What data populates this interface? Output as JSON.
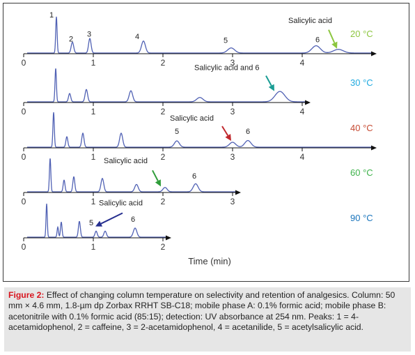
{
  "chart_data": {
    "type": "line",
    "xlabel": "Time (min)",
    "x_ticks": [
      0,
      1,
      2,
      3,
      4
    ],
    "xlim": [
      0,
      5
    ],
    "grid": false,
    "legend": "none",
    "colors": {
      "line": "#5061b4",
      "axis": "#111111"
    },
    "panels": [
      {
        "label": "20 °C",
        "label_color": "#8cc63f",
        "x_end": 5.0,
        "peaks": [
          {
            "t": 0.47,
            "h": 1.0,
            "w": 0.01
          },
          {
            "t": 0.7,
            "h": 0.3,
            "w": 0.018
          },
          {
            "t": 0.95,
            "h": 0.4,
            "w": 0.018
          },
          {
            "t": 1.72,
            "h": 0.33,
            "w": 0.028
          },
          {
            "t": 2.98,
            "h": 0.14,
            "w": 0.05
          },
          {
            "t": 4.2,
            "h": 0.2,
            "w": 0.06
          },
          {
            "t": 4.52,
            "h": 0.1,
            "w": 0.07
          }
        ],
        "annotations": [
          {
            "text": "1",
            "t": 0.4,
            "h": 1.0
          },
          {
            "text": "2",
            "t": 0.68,
            "h": 0.34
          },
          {
            "text": "3",
            "t": 0.94,
            "h": 0.47
          },
          {
            "text": "4",
            "t": 1.63,
            "h": 0.4
          },
          {
            "text": "5",
            "t": 2.9,
            "h": 0.3
          },
          {
            "text": "6",
            "t": 4.22,
            "h": 0.32
          }
        ],
        "callouts": [
          {
            "text": "Salicylic acid",
            "t": 3.8,
            "h": 0.85,
            "arrow_t": 4.5,
            "arrow_h": 0.14,
            "from_t": 4.38,
            "from_h": 0.66,
            "arrow_color": "#8cc63f"
          }
        ]
      },
      {
        "label": "30 °C",
        "label_color": "#1faae0",
        "x_end": 4.05,
        "peaks": [
          {
            "t": 0.46,
            "h": 1.0,
            "w": 0.01
          },
          {
            "t": 0.66,
            "h": 0.25,
            "w": 0.016
          },
          {
            "t": 0.9,
            "h": 0.37,
            "w": 0.018
          },
          {
            "t": 1.54,
            "h": 0.33,
            "w": 0.025
          },
          {
            "t": 2.53,
            "h": 0.13,
            "w": 0.045
          },
          {
            "t": 3.68,
            "h": 0.31,
            "w": 0.07
          }
        ],
        "annotations": [],
        "callouts": [
          {
            "text": "Salicylic acid and 6",
            "t": 2.45,
            "h": 0.97,
            "arrow_t": 3.6,
            "arrow_h": 0.34,
            "from_t": 3.48,
            "from_h": 0.8,
            "arrow_color": "#1a9d94"
          }
        ]
      },
      {
        "label": "40 °C",
        "label_color": "#c64a32",
        "x_end": 5.0,
        "peaks": [
          {
            "t": 0.43,
            "h": 1.0,
            "w": 0.01
          },
          {
            "t": 0.62,
            "h": 0.3,
            "w": 0.014
          },
          {
            "t": 0.85,
            "h": 0.4,
            "w": 0.016
          },
          {
            "t": 1.4,
            "h": 0.4,
            "w": 0.022
          },
          {
            "t": 2.2,
            "h": 0.18,
            "w": 0.035
          },
          {
            "t": 3.0,
            "h": 0.14,
            "w": 0.045
          },
          {
            "t": 3.22,
            "h": 0.19,
            "w": 0.045
          }
        ],
        "annotations": [
          {
            "text": "5",
            "t": 2.2,
            "h": 0.4
          },
          {
            "text": "6",
            "t": 3.22,
            "h": 0.4
          }
        ],
        "callouts": [
          {
            "text": "Salicylic acid",
            "t": 2.1,
            "h": 0.78,
            "arrow_t": 2.98,
            "arrow_h": 0.2,
            "from_t": 2.85,
            "from_h": 0.62,
            "arrow_color": "#c0282d"
          }
        ]
      },
      {
        "label": "60 °C",
        "label_color": "#3db24a",
        "x_end": 3.05,
        "peaks": [
          {
            "t": 0.38,
            "h": 1.0,
            "w": 0.01
          },
          {
            "t": 0.58,
            "h": 0.35,
            "w": 0.013
          },
          {
            "t": 0.72,
            "h": 0.45,
            "w": 0.014
          },
          {
            "t": 1.13,
            "h": 0.4,
            "w": 0.02
          },
          {
            "t": 1.62,
            "h": 0.22,
            "w": 0.025
          },
          {
            "t": 2.03,
            "h": 0.13,
            "w": 0.03
          },
          {
            "t": 2.47,
            "h": 0.24,
            "w": 0.035
          }
        ],
        "annotations": [
          {
            "text": "6",
            "t": 2.45,
            "h": 0.42
          }
        ],
        "callouts": [
          {
            "text": "Salicylic acid",
            "t": 1.15,
            "h": 0.88,
            "arrow_t": 1.97,
            "arrow_h": 0.18,
            "from_t": 1.85,
            "from_h": 0.66,
            "arrow_color": "#2f9d3a"
          }
        ]
      },
      {
        "label": "90 °C",
        "label_color": "#1a75bc",
        "x_end": 2.05,
        "peaks": [
          {
            "t": 0.33,
            "h": 1.0,
            "w": 0.009
          },
          {
            "t": 0.49,
            "h": 0.3,
            "w": 0.01
          },
          {
            "t": 0.54,
            "h": 0.45,
            "w": 0.011
          },
          {
            "t": 0.8,
            "h": 0.47,
            "w": 0.014
          },
          {
            "t": 1.04,
            "h": 0.18,
            "w": 0.016
          },
          {
            "t": 1.17,
            "h": 0.18,
            "w": 0.018
          },
          {
            "t": 1.6,
            "h": 0.27,
            "w": 0.025
          }
        ],
        "annotations": [
          {
            "text": "5",
            "t": 0.97,
            "h": 0.38
          },
          {
            "text": "6",
            "t": 1.57,
            "h": 0.48
          }
        ],
        "callouts": [
          {
            "text": "Salicylic acid",
            "t": 1.08,
            "h": 0.97,
            "arrow_t": 1.03,
            "arrow_h": 0.34,
            "from_t": 1.42,
            "from_h": 0.74,
            "arrow_color": "#262f8f"
          }
        ]
      }
    ]
  },
  "caption": {
    "label": "Figure 2:",
    "text": " Effect of changing column temperature on selectivity and retention of analgesics. Column: 50 mm × 4.6 mm, 1.8-µm dp Zorbax RRHT SB-C18; mobile phase A: 0.1% formic acid; mobile phase B: acetonitrile with 0.1% formic acid (85:15); detection: UV absorbance at 254 nm. Peaks: 1 = 4-acetamidophenol, 2 = caffeine, 3 = 2-acetamidophenol, 4 = acetanilide, 5 = acetylsalicylic acid."
  }
}
